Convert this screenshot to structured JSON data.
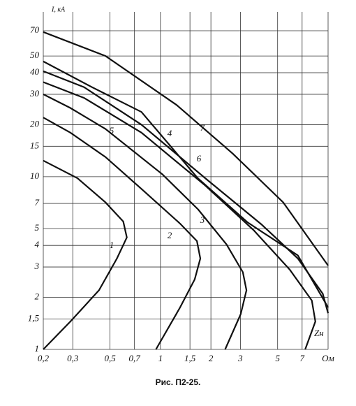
{
  "chart_data": {
    "type": "line",
    "title": "Рис. П2-25.",
    "ylabel": "I, кА",
    "xlabel": "Zн",
    "xlog": true,
    "ylog": true,
    "grid": true,
    "color": "#111111",
    "xlim": [
      0.2,
      10
    ],
    "ylim": [
      1,
      90
    ],
    "xticks": [
      {
        "value": 0.2,
        "label": "0,2"
      },
      {
        "value": 0.3,
        "label": "0,3"
      },
      {
        "value": 0.5,
        "label": "0,5"
      },
      {
        "value": 0.7,
        "label": "0,7"
      },
      1,
      {
        "value": 1.5,
        "label": "1,5"
      },
      2,
      3,
      5,
      7,
      {
        "value": 10,
        "label": "Ом"
      }
    ],
    "yticks": [
      1,
      {
        "value": 1.5,
        "label": "1,5"
      },
      2,
      3,
      4,
      5,
      7,
      10,
      15,
      20,
      30,
      40,
      50,
      70
    ],
    "series": [
      {
        "name": "1",
        "x": [
          0.2,
          0.29,
          0.43,
          0.55,
          0.63,
          0.6,
          0.47,
          0.32,
          0.2
        ],
        "values": [
          1,
          1.45,
          2.2,
          3.36,
          4.45,
          5.5,
          7.1,
          9.8,
          12.4
        ]
      },
      {
        "name": "2",
        "x": [
          0.94,
          1.31,
          1.6,
          1.73,
          1.65,
          1.31,
          0.77,
          0.47,
          0.29,
          0.2
        ],
        "values": [
          1,
          1.75,
          2.54,
          3.36,
          4.24,
          5.35,
          8.5,
          13,
          18,
          22
        ]
      },
      {
        "name": "3",
        "x": [
          2.43,
          3.01,
          3.26,
          3.1,
          2.48,
          1.68,
          1.03,
          0.47,
          0.29,
          0.2
        ],
        "values": [
          1,
          1.6,
          2.2,
          2.8,
          4.05,
          6.45,
          10.3,
          18.9,
          25,
          30
        ]
      },
      {
        "name": "4",
        "x": [
          0.2,
          0.35,
          0.77,
          1.85,
          3.6,
          5.9,
          8,
          8.4,
          7.3
        ],
        "values": [
          35.3,
          28.6,
          18,
          8.9,
          4.9,
          2.9,
          1.92,
          1.45,
          1
        ]
      },
      {
        "name": "5",
        "x": [
          0.2,
          0.35,
          0.77,
          1.85,
          4,
          6.6,
          9.3,
          10
        ],
        "values": [
          40.8,
          33,
          20,
          9.8,
          5.3,
          3.36,
          2.1,
          1.62
        ]
      },
      {
        "name": "6",
        "x": [
          0.2,
          0.39,
          0.77,
          1.67,
          3.3,
          6.6,
          10
        ],
        "values": [
          46.5,
          33,
          23.7,
          9.8,
          5.45,
          3.5,
          1.75
        ]
      },
      {
        "name": "7",
        "x": [
          0.2,
          0.47,
          1.25,
          2.7,
          5.4,
          10
        ],
        "values": [
          68.8,
          50,
          26,
          13.6,
          7.1,
          3.06
        ]
      }
    ]
  }
}
